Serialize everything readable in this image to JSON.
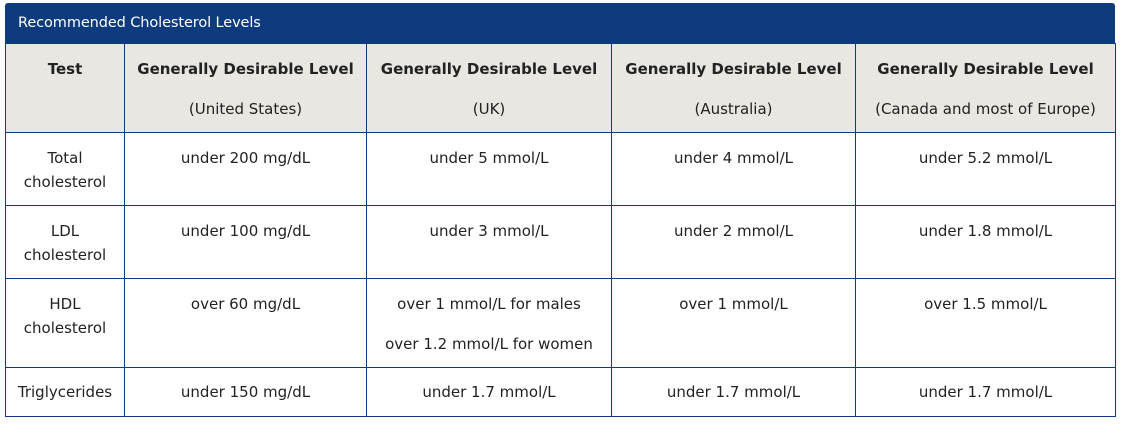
{
  "title": "Recommended Cholesterol Levels",
  "columns": [
    {
      "main": "Test",
      "sub": ""
    },
    {
      "main": "Generally Desirable Level",
      "sub": "(United States)"
    },
    {
      "main": "Generally Desirable Level",
      "sub": "(UK)"
    },
    {
      "main": "Generally Desirable Level",
      "sub": "(Australia)"
    },
    {
      "main": "Generally Desirable Level",
      "sub": "(Canada and most of Europe)"
    }
  ],
  "rows": [
    {
      "test": [
        "Total",
        "cholesterol"
      ],
      "us": [
        "under 200 mg/dL"
      ],
      "uk": [
        "under 5 mmol/L"
      ],
      "au": [
        "under 4 mmol/L"
      ],
      "eu": [
        "under 5.2 mmol/L"
      ]
    },
    {
      "test": [
        "LDL",
        "cholesterol"
      ],
      "us": [
        "under 100 mg/dL"
      ],
      "uk": [
        "under 3 mmol/L"
      ],
      "au": [
        "under 2 mmol/L"
      ],
      "eu": [
        "under 1.8 mmol/L"
      ]
    },
    {
      "test": [
        "HDL",
        "cholesterol"
      ],
      "us": [
        "over 60 mg/dL"
      ],
      "uk": [
        "over 1 mmol/L for males",
        "over 1.2 mmol/L for women"
      ],
      "au": [
        "over 1 mmol/L"
      ],
      "eu": [
        "over 1.5 mmol/L"
      ]
    },
    {
      "test": [
        "Triglycerides"
      ],
      "us": [
        "under 150 mg/dL"
      ],
      "uk": [
        "under 1.7 mmol/L"
      ],
      "au": [
        "under 1.7 mmol/L"
      ],
      "eu": [
        "under 1.7 mmol/L"
      ]
    }
  ]
}
